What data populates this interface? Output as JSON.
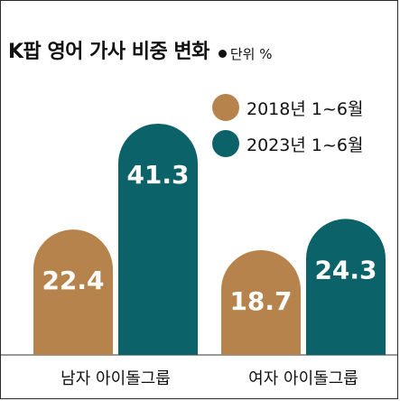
{
  "header": {
    "title": "K팝 영어 가사 비중 변화",
    "unit": "단위 %"
  },
  "colors": {
    "series_2018": "#b7834c",
    "series_2023": "#0c6269",
    "axis": "#333333"
  },
  "chart_data": {
    "type": "bar",
    "title": "K팝 영어 가사 비중 변화",
    "unit": "단위 %",
    "categories": [
      "남자 아이돌그룹",
      "여자 아이돌그룹"
    ],
    "series": [
      {
        "name": "2018년 1~6월",
        "values": [
          22.4,
          18.7
        ]
      },
      {
        "name": "2023년 1~6월",
        "values": [
          41.3,
          24.3
        ]
      }
    ],
    "legend": "top-right",
    "grid": false
  }
}
